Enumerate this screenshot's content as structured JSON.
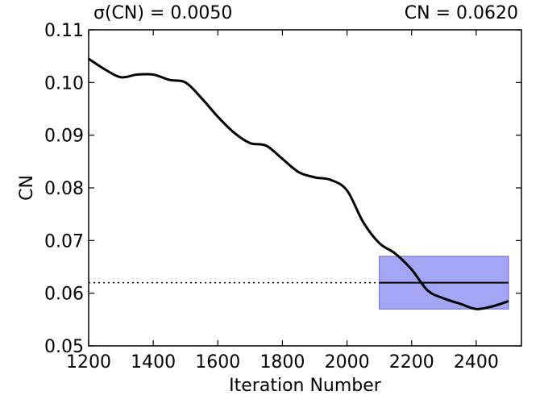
{
  "chart_data": {
    "type": "line",
    "annotations": {
      "left": "σ(CN) = 0.0050",
      "right": "CN = 0.0620"
    },
    "xlabel": "Iteration Number",
    "ylabel": "CN",
    "xlim": [
      1200,
      2540
    ],
    "ylim": [
      0.05,
      0.11
    ],
    "xticks": [
      1200,
      1400,
      1600,
      1800,
      2000,
      2200,
      2400
    ],
    "xtick_labels": [
      "1200",
      "1400",
      "1600",
      "1800",
      "2000",
      "2200",
      "2400"
    ],
    "yticks": [
      0.05,
      0.06,
      0.07,
      0.08,
      0.09,
      0.1,
      0.11
    ],
    "ytick_labels": [
      "0.05",
      "0.06",
      "0.07",
      "0.08",
      "0.09",
      "0.10",
      "0.11"
    ],
    "grid": false,
    "series": [
      {
        "color": "#000000",
        "x": [
          1200,
          1250,
          1300,
          1350,
          1400,
          1450,
          1500,
          1550,
          1600,
          1650,
          1700,
          1750,
          1800,
          1850,
          1900,
          1950,
          2000,
          2050,
          2100,
          2150,
          2200,
          2250,
          2300,
          2350,
          2400,
          2450,
          2500
        ],
        "y": [
          0.1045,
          0.1025,
          0.101,
          0.1015,
          0.1015,
          0.1005,
          0.1,
          0.097,
          0.0935,
          0.0905,
          0.0885,
          0.088,
          0.0855,
          0.083,
          0.082,
          0.0815,
          0.0795,
          0.0735,
          0.0695,
          0.0675,
          0.0645,
          0.0605,
          0.059,
          0.058,
          0.057,
          0.0575,
          0.0585
        ]
      }
    ],
    "mean_line": {
      "value": 0.062,
      "dotted_x": [
        1200,
        2100
      ],
      "solid_x": [
        2100,
        2500
      ],
      "color": "#000000"
    },
    "band": {
      "x": [
        2100,
        2500
      ],
      "y": [
        0.057,
        0.067
      ],
      "color": "#a5a5f5"
    }
  }
}
